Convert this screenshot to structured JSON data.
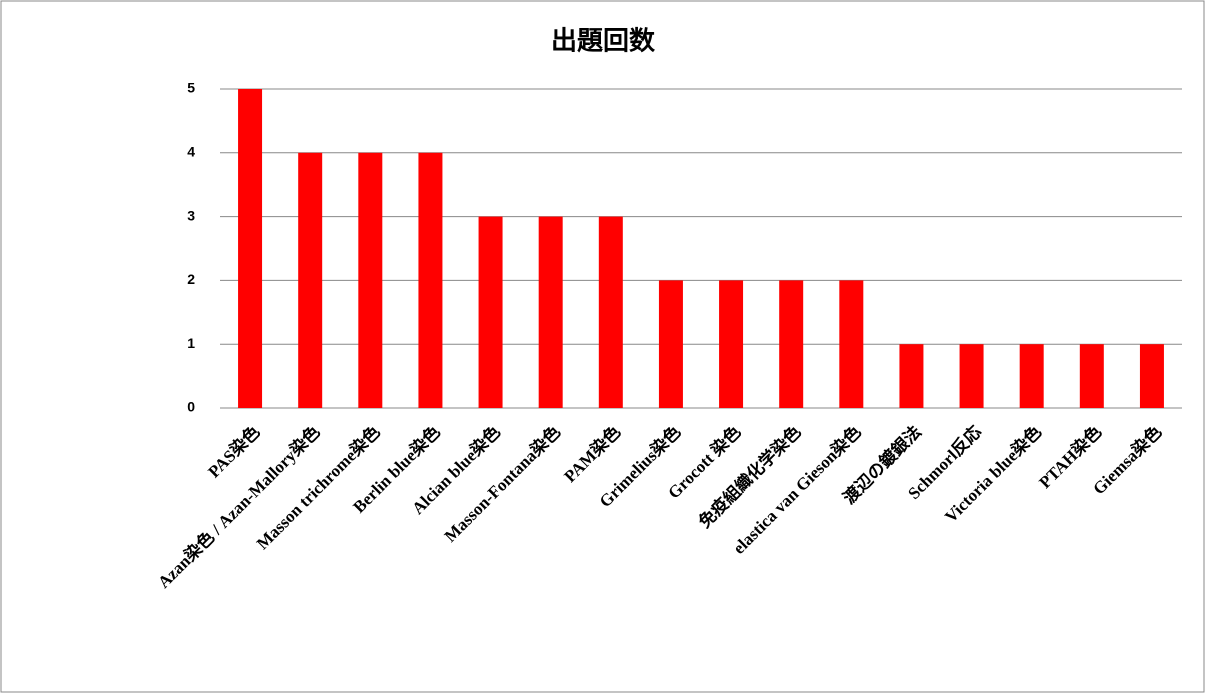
{
  "chart_data": {
    "type": "bar",
    "title": "出題回数",
    "categories": [
      "PAS染色",
      "Azan染色 / Azan-Mallory染色",
      "Masson trichrome染色",
      "Berlin blue染色",
      "Alcian blue染色",
      "Masson-Fontana染色",
      "PAM染色",
      "Grimelius染色",
      "Grocott 染色",
      "免疫組織化学染色",
      "elastica van Gieson染色",
      "渡辺の鍍銀法",
      "Schmorl反応",
      "Victoria blue染色",
      "PTAH染色",
      "Giemsa染色"
    ],
    "values": [
      5,
      4,
      4,
      4,
      3,
      3,
      3,
      2,
      2,
      2,
      2,
      1,
      1,
      1,
      1,
      1
    ],
    "color": "#ff0000",
    "ylim": [
      0,
      5
    ],
    "yticks": [
      0,
      1,
      2,
      3,
      4,
      5
    ],
    "grid": true
  }
}
